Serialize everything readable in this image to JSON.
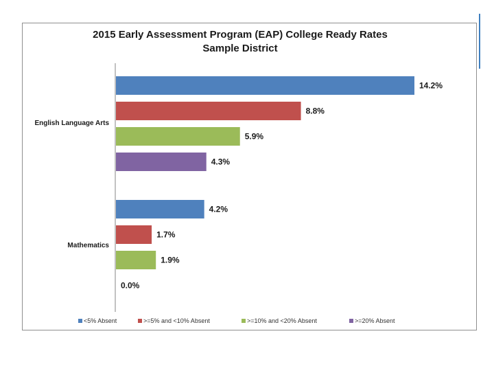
{
  "chart_data": {
    "type": "bar",
    "orientation": "horizontal",
    "title": "2015 Early Assessment Program (EAP) College Ready Rates",
    "subtitle": "Sample District",
    "categories": [
      "English Language Arts",
      "Mathematics"
    ],
    "series": [
      {
        "name": "<5% Absent",
        "color": "#4f81bd",
        "values": [
          14.2,
          4.2
        ],
        "labels": [
          "14.2%",
          "4.2%"
        ]
      },
      {
        "name": ">=5% and <10% Absent",
        "color": "#c0504d",
        "values": [
          8.8,
          1.7
        ],
        "labels": [
          "8.8%",
          "1.7%"
        ]
      },
      {
        "name": ">=10% and <20% Absent",
        "color": "#9bbb59",
        "values": [
          5.9,
          1.9
        ],
        "labels": [
          "5.9%",
          "1.9%"
        ]
      },
      {
        "name": ">=20% Absent",
        "color": "#8064a2",
        "values": [
          4.3,
          0.0
        ],
        "labels": [
          "4.3%",
          "0.0%"
        ]
      }
    ],
    "xlim": [
      0,
      14.2
    ],
    "xlabel": "",
    "ylabel": "",
    "grid": false,
    "legend_position": "bottom"
  }
}
